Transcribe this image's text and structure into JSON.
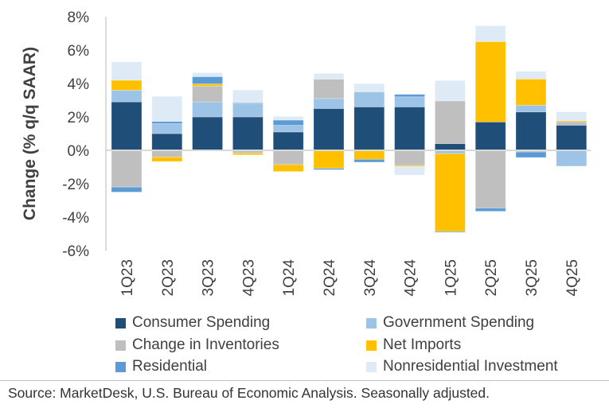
{
  "chart_data": {
    "type": "bar",
    "stacked": true,
    "title": "",
    "xlabel": "",
    "ylabel": "Change (% q/q SAAR)",
    "ylim": [
      -6,
      8
    ],
    "yticks": [
      -6,
      -4,
      -2,
      0,
      2,
      4,
      6,
      8
    ],
    "ytick_labels": [
      "-6%",
      "-4%",
      "-2%",
      "0%",
      "2%",
      "4%",
      "6%",
      "8%"
    ],
    "grid": false,
    "legend_placement": "bottom",
    "categories": [
      "1Q23",
      "2Q23",
      "3Q23",
      "4Q23",
      "1Q24",
      "2Q24",
      "3Q24",
      "4Q24",
      "1Q25",
      "2Q25",
      "3Q25",
      "4Q25"
    ],
    "series": [
      {
        "name": "Consumer Spending",
        "color": "#1F4E79",
        "values": [
          2.9,
          1.0,
          2.0,
          2.0,
          1.1,
          2.5,
          2.6,
          2.6,
          0.4,
          1.7,
          2.3,
          1.5
        ]
      },
      {
        "name": "Government Spending",
        "color": "#9DC3E6",
        "values": [
          0.7,
          0.6,
          0.9,
          0.8,
          0.4,
          0.6,
          0.9,
          0.6,
          -0.2,
          0.0,
          0.4,
          -0.95
        ]
      },
      {
        "name": "Change in Inventories",
        "color": "#BFBFBF",
        "values": [
          -2.2,
          -0.4,
          0.95,
          -0.17,
          -0.86,
          1.16,
          0.0,
          -0.91,
          2.56,
          -3.46,
          -0.1,
          0.22
        ]
      },
      {
        "name": "Net Imports",
        "color": "#FFC000",
        "values": [
          0.6,
          -0.27,
          0.13,
          -0.1,
          -0.41,
          -1.08,
          -0.54,
          -0.06,
          -4.66,
          4.81,
          1.57,
          0.06
        ]
      },
      {
        "name": "Residential",
        "color": "#5B9BD5",
        "values": [
          -0.3,
          0.13,
          0.43,
          0.05,
          0.31,
          -0.08,
          -0.17,
          0.15,
          -0.05,
          -0.19,
          -0.33,
          0.0
        ]
      },
      {
        "name": "Nonresidential Investment",
        "color": "#DEEBF7",
        "values": [
          1.1,
          1.5,
          0.24,
          0.76,
          0.22,
          0.34,
          0.49,
          -0.51,
          1.22,
          0.95,
          0.46,
          0.53
        ]
      }
    ]
  },
  "source": "Source: MarketDesk, U.S. Bureau of Economic Analysis. Seasonally adjusted."
}
